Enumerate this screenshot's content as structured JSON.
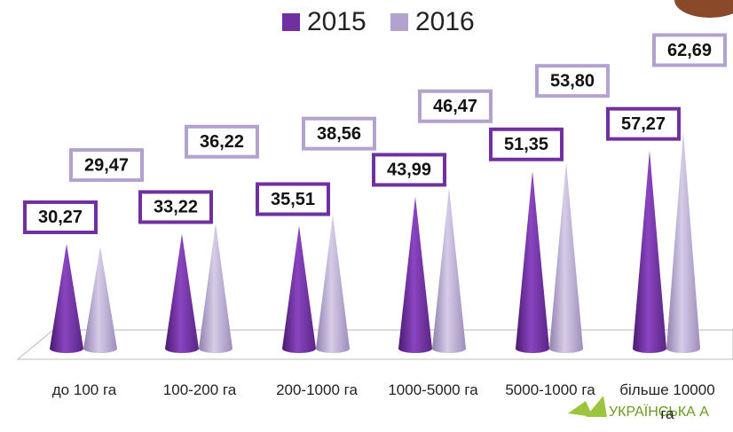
{
  "chart_data": {
    "type": "bar",
    "categories": [
      "до 100 га",
      "100-200 га",
      "200-1000 га",
      "1000-5000 га",
      "5000-1000 га",
      "більше 10000 га"
    ],
    "series": [
      {
        "name": "2015",
        "color": "#7030a0",
        "values": [
          30.27,
          33.22,
          35.51,
          43.99,
          51.35,
          57.27
        ],
        "value_labels": [
          "30,27",
          "33,22",
          "35,51",
          "43,99",
          "51,35",
          "57,27"
        ]
      },
      {
        "name": "2016",
        "color": "#b3a2d0",
        "values": [
          29.47,
          36.22,
          38.56,
          46.47,
          53.8,
          62.69
        ],
        "value_labels": [
          "29,47",
          "36,22",
          "38,56",
          "46,47",
          "53,80",
          "62,69"
        ]
      }
    ]
  },
  "logo": "УКРАЇНСЬКА А"
}
